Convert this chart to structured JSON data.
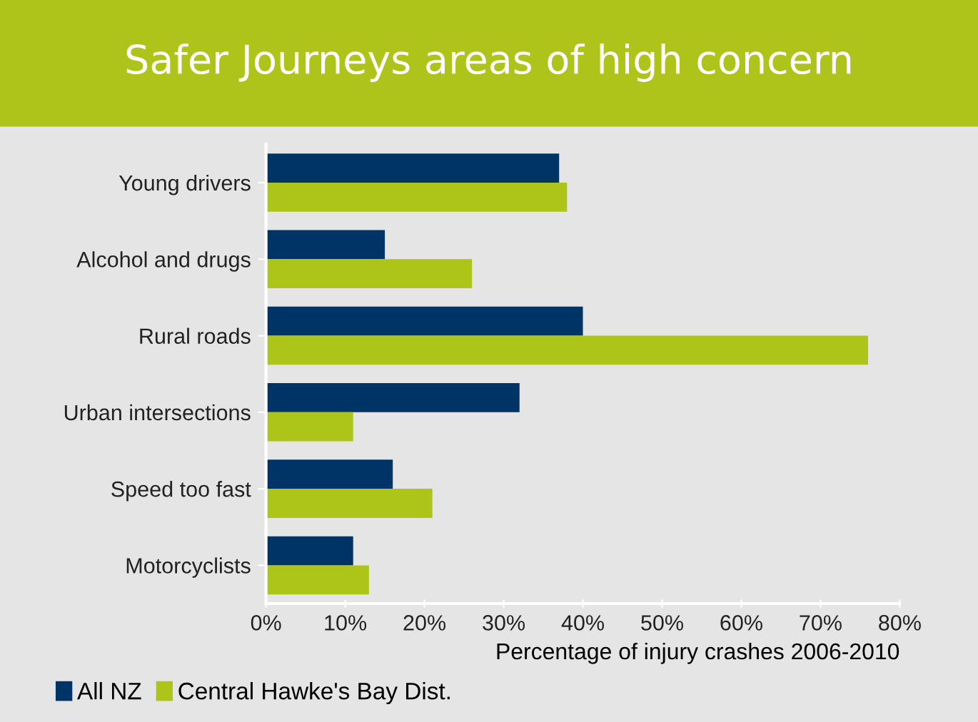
{
  "chart_data": {
    "type": "bar",
    "orientation": "horizontal",
    "title": "Safer Journeys areas of high concern",
    "xlabel": "Percentage of injury crashes 2006-2010",
    "categories": [
      "Young drivers",
      "Alcohol and drugs",
      "Rural roads",
      "Urban intersections",
      "Speed too fast",
      "Motorcyclists"
    ],
    "series": [
      {
        "name": "All NZ",
        "color": "#003366",
        "values": [
          37,
          15,
          40,
          32,
          16,
          11
        ]
      },
      {
        "name": "Central Hawke's Bay Dist.",
        "color": "#adc418",
        "values": [
          38,
          26,
          76,
          11,
          21,
          13
        ]
      }
    ],
    "xlim": [
      0,
      80
    ],
    "xticks": [
      {
        "value": 0,
        "label": "0%"
      },
      {
        "value": 10,
        "label": "10%"
      },
      {
        "value": 20,
        "label": "20%"
      },
      {
        "value": 30,
        "label": "30%"
      },
      {
        "value": 40,
        "label": "40%"
      },
      {
        "value": 50,
        "label": "50%"
      },
      {
        "value": 60,
        "label": "60%"
      },
      {
        "value": 70,
        "label": "70%"
      },
      {
        "value": 80,
        "label": "80%"
      }
    ],
    "grid": false,
    "legend": "bottom left"
  }
}
